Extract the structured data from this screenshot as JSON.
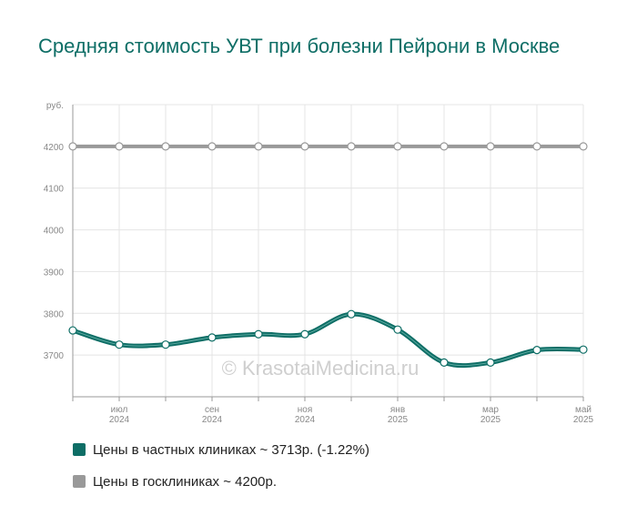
{
  "chart_data": {
    "type": "line",
    "title": "Средняя стоимость УВТ при болезни Пейрони в Москве",
    "ylabel": "руб.",
    "ylim": [
      3600,
      4300
    ],
    "yticks": [
      3700,
      3800,
      3900,
      4000,
      4100,
      4200
    ],
    "x_range": [
      0,
      11
    ],
    "xticks": [
      {
        "x": 1,
        "month": "июл",
        "year": "2024"
      },
      {
        "x": 3,
        "month": "сен",
        "year": "2024"
      },
      {
        "x": 5,
        "month": "ноя",
        "year": "2024"
      },
      {
        "x": 7,
        "month": "янв",
        "year": "2025"
      },
      {
        "x": 9,
        "month": "мар",
        "year": "2025"
      },
      {
        "x": 11,
        "month": "май",
        "year": "2025"
      }
    ],
    "grid": true,
    "watermark": "© KrasotaiMedicina.ru",
    "series": [
      {
        "name": "Цены в частных клиниках",
        "legend": "Цены в частных клиниках ~ 3713р. (-1.22%)",
        "color": "#0e6e66",
        "x": [
          0,
          1,
          2,
          3,
          4,
          5,
          6,
          7,
          8,
          9,
          10,
          11
        ],
        "values": [
          3759,
          3725,
          3725,
          3742,
          3750,
          3750,
          3798,
          3761,
          3682,
          3682,
          3712,
          3713
        ]
      },
      {
        "name": "Цены в госклиниках",
        "legend": "Цены в госклиниках ~ 4200р.",
        "color": "#999999",
        "x": [
          0,
          1,
          2,
          3,
          4,
          5,
          6,
          7,
          8,
          9,
          10,
          11
        ],
        "values": [
          4200,
          4200,
          4200,
          4200,
          4200,
          4200,
          4200,
          4200,
          4200,
          4200,
          4200,
          4200
        ]
      }
    ]
  }
}
